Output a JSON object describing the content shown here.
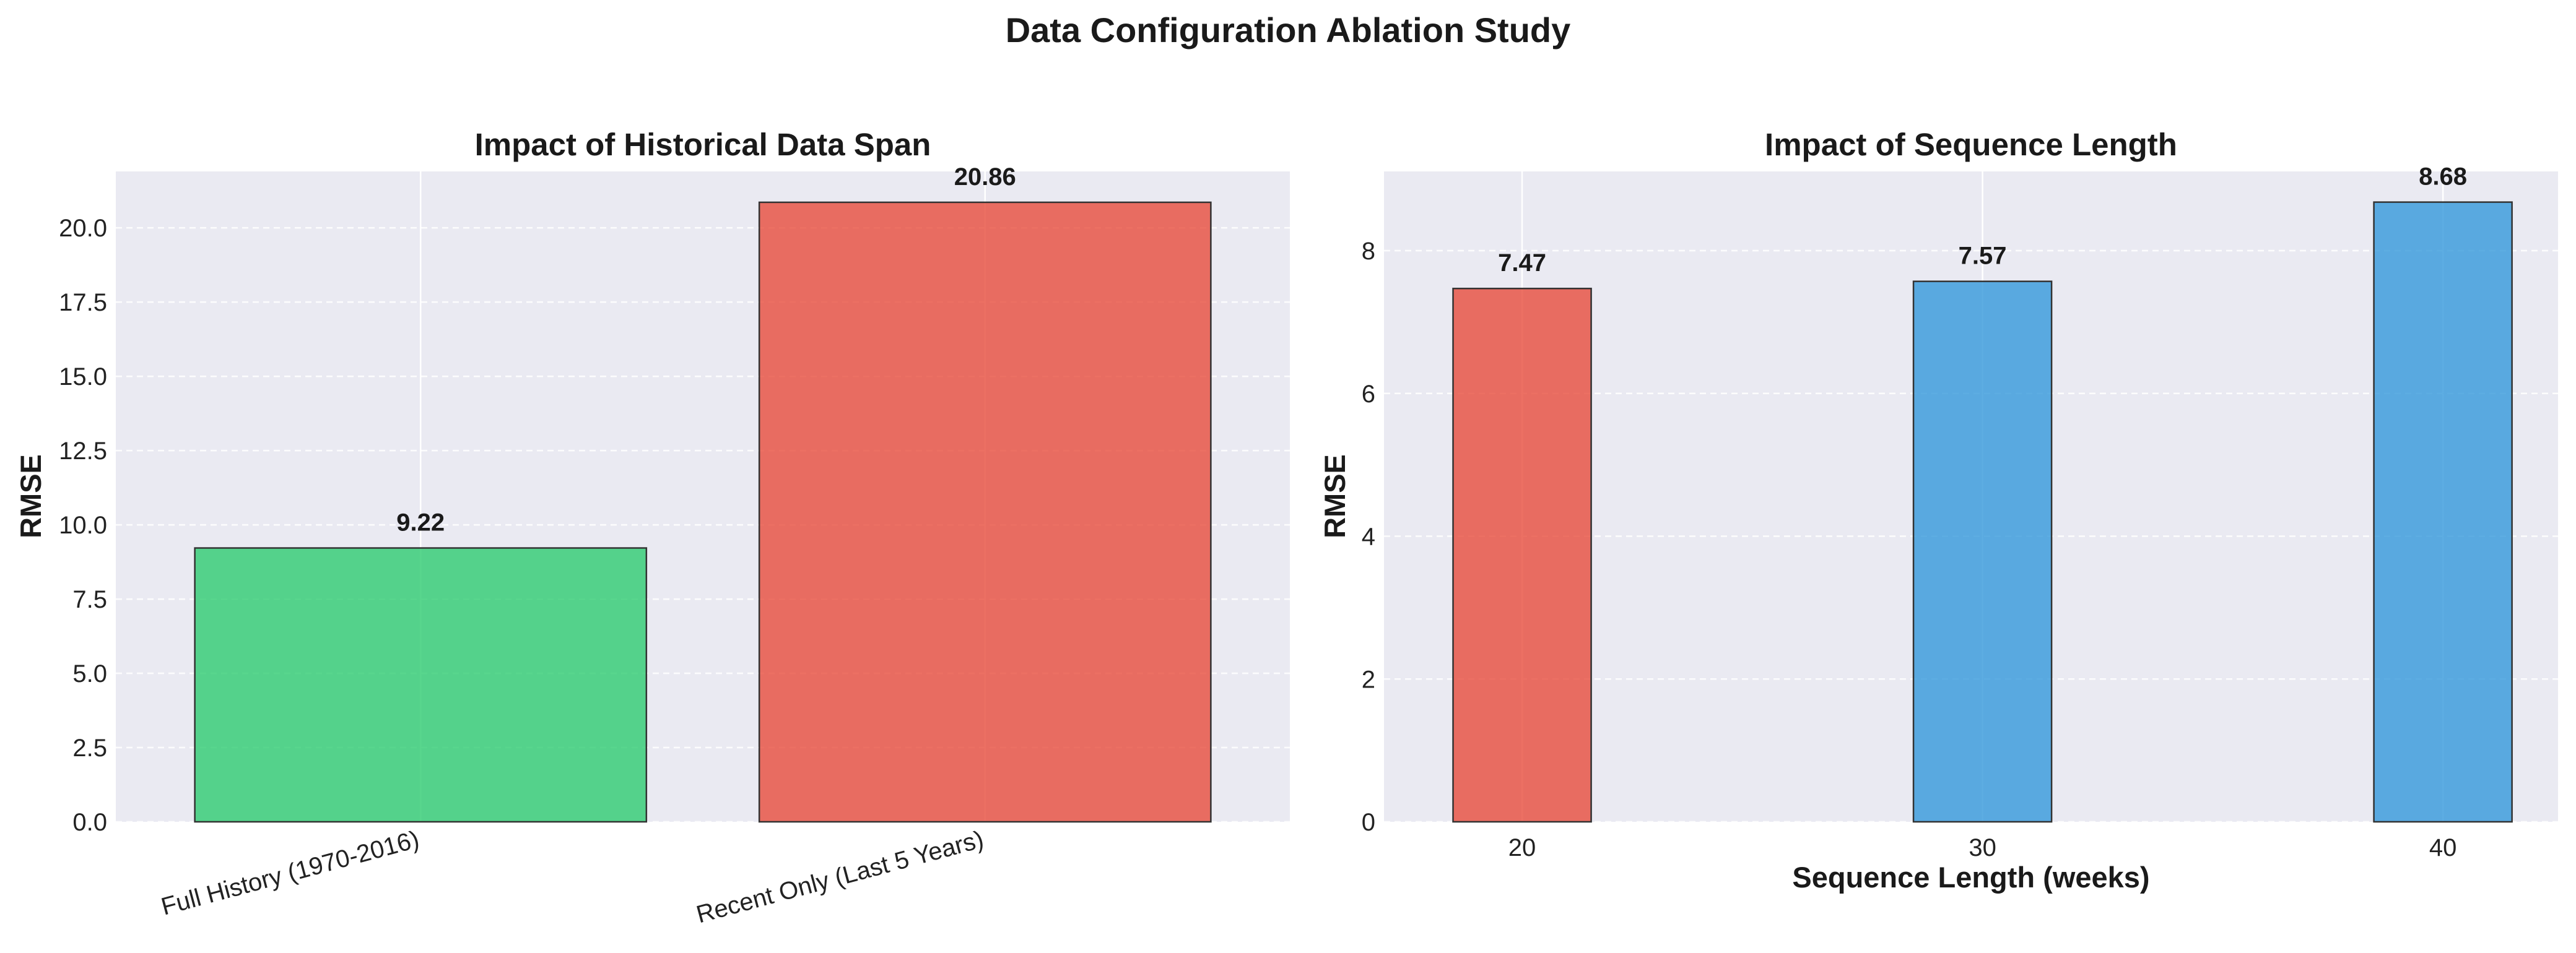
{
  "figure": {
    "title": "Data Configuration Ablation Study",
    "background": "#ffffff",
    "axes_facecolor": "#eaeaf2",
    "grid_color": "#ffffff",
    "text_color": "#1a1a1a",
    "edge_color": "#333333"
  },
  "chart_data": [
    {
      "type": "bar",
      "title": "Impact of Historical Data Span",
      "xlabel": "",
      "ylabel": "RMSE",
      "categories": [
        "Full History (1970-2016)",
        "Recent Only (Last 5 Years)"
      ],
      "values": [
        9.22,
        20.86
      ],
      "value_labels": [
        "9.22",
        "20.86"
      ],
      "colors": [
        "#2ecc71",
        "#e74c3c"
      ],
      "ylim": [
        0,
        21.9
      ],
      "yticks": [
        0,
        2.5,
        5,
        7.5,
        10,
        12.5,
        15,
        17.5,
        20
      ],
      "ytick_labels": [
        "0.0",
        "2.5",
        "5.0",
        "7.5",
        "10.0",
        "12.5",
        "15.0",
        "17.5",
        "20.0"
      ],
      "xtick_rotation": "rotated",
      "grid": true,
      "legend": "none"
    },
    {
      "type": "bar",
      "title": "Impact of Sequence Length",
      "xlabel": "Sequence Length (weeks)",
      "ylabel": "RMSE",
      "categories": [
        "20",
        "30",
        "40"
      ],
      "x": [
        20,
        30,
        40
      ],
      "values": [
        7.47,
        7.57,
        8.68
      ],
      "value_labels": [
        "7.47",
        "7.57",
        "8.68"
      ],
      "colors": [
        "#e74c3c",
        "#3498db",
        "#3498db"
      ],
      "xlim": [
        17,
        42.5
      ],
      "ylim": [
        0,
        9.11
      ],
      "yticks": [
        0,
        2,
        4,
        6,
        8
      ],
      "ytick_labels": [
        "0",
        "2",
        "4",
        "6",
        "8"
      ],
      "grid": true,
      "legend": "none"
    }
  ]
}
